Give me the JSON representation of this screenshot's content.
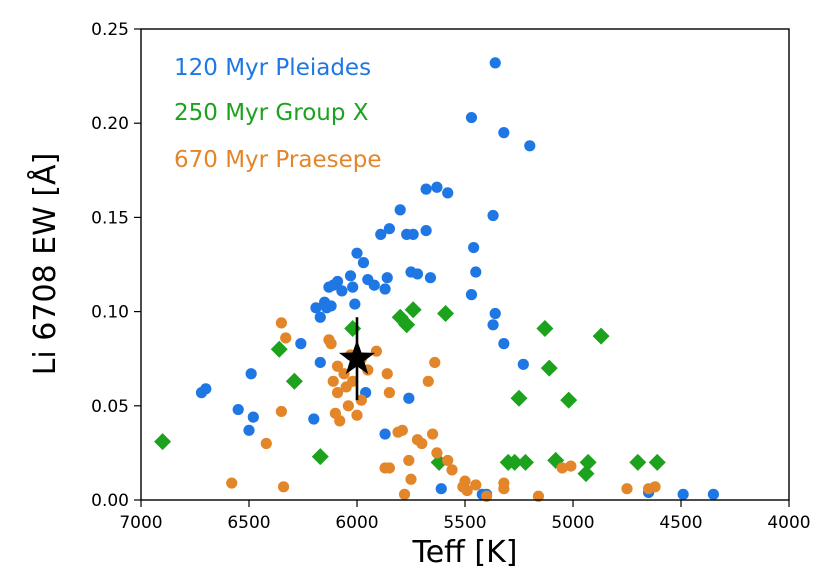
{
  "chart_data": {
    "type": "scatter",
    "xlabel": "Teff [K]",
    "ylabel": "Li 6708 EW [Å]",
    "xlim": [
      7000,
      4000
    ],
    "ylim": [
      0.0,
      0.25
    ],
    "x_ticks": [
      "7000",
      "6500",
      "6000",
      "5500",
      "5000",
      "4500",
      "4000"
    ],
    "y_ticks": [
      "0.00",
      "0.05",
      "0.10",
      "0.15",
      "0.20",
      "0.25"
    ],
    "legend_position": "top-left",
    "series": [
      {
        "name": "120 Myr Pleiades",
        "color": "#1f77e4",
        "marker": "circle",
        "points": [
          [
            5360,
            0.232
          ],
          [
            5470,
            0.203
          ],
          [
            5320,
            0.195
          ],
          [
            5200,
            0.188
          ],
          [
            5630,
            0.166
          ],
          [
            5680,
            0.165
          ],
          [
            5580,
            0.163
          ],
          [
            5800,
            0.154
          ],
          [
            5370,
            0.151
          ],
          [
            5850,
            0.144
          ],
          [
            5890,
            0.141
          ],
          [
            5680,
            0.143
          ],
          [
            5740,
            0.141
          ],
          [
            5770,
            0.141
          ],
          [
            5460,
            0.134
          ],
          [
            5970,
            0.126
          ],
          [
            6000,
            0.131
          ],
          [
            5450,
            0.121
          ],
          [
            5750,
            0.121
          ],
          [
            5720,
            0.12
          ],
          [
            5660,
            0.118
          ],
          [
            5860,
            0.118
          ],
          [
            6030,
            0.119
          ],
          [
            6090,
            0.116
          ],
          [
            6070,
            0.111
          ],
          [
            6110,
            0.114
          ],
          [
            6130,
            0.113
          ],
          [
            5950,
            0.117
          ],
          [
            5920,
            0.114
          ],
          [
            5870,
            0.112
          ],
          [
            6020,
            0.113
          ],
          [
            6150,
            0.105
          ],
          [
            6190,
            0.102
          ],
          [
            6120,
            0.103
          ],
          [
            6140,
            0.102
          ],
          [
            6010,
            0.104
          ],
          [
            5470,
            0.109
          ],
          [
            6170,
            0.097
          ],
          [
            5360,
            0.099
          ],
          [
            5370,
            0.093
          ],
          [
            6260,
            0.083
          ],
          [
            5320,
            0.083
          ],
          [
            6170,
            0.073
          ],
          [
            5230,
            0.072
          ],
          [
            6490,
            0.067
          ],
          [
            6720,
            0.057
          ],
          [
            6700,
            0.059
          ],
          [
            5960,
            0.057
          ],
          [
            5760,
            0.054
          ],
          [
            6550,
            0.048
          ],
          [
            6480,
            0.044
          ],
          [
            6200,
            0.043
          ],
          [
            6500,
            0.037
          ],
          [
            5870,
            0.035
          ],
          [
            5420,
            0.003
          ],
          [
            5400,
            0.003
          ],
          [
            4650,
            0.004
          ],
          [
            4490,
            0.003
          ],
          [
            4350,
            0.003
          ],
          [
            5610,
            0.006
          ]
        ]
      },
      {
        "name": "250 Myr Group X",
        "color": "#1ca21c",
        "marker": "diamond",
        "points": [
          [
            5740,
            0.101
          ],
          [
            5800,
            0.097
          ],
          [
            5770,
            0.093
          ],
          [
            5590,
            0.099
          ],
          [
            6020,
            0.091
          ],
          [
            5130,
            0.091
          ],
          [
            4870,
            0.087
          ],
          [
            6360,
            0.08
          ],
          [
            5110,
            0.07
          ],
          [
            6290,
            0.063
          ],
          [
            5250,
            0.054
          ],
          [
            5020,
            0.053
          ],
          [
            6170,
            0.023
          ],
          [
            5620,
            0.02
          ],
          [
            5300,
            0.02
          ],
          [
            5270,
            0.02
          ],
          [
            5220,
            0.02
          ],
          [
            5080,
            0.021
          ],
          [
            4930,
            0.02
          ],
          [
            4700,
            0.02
          ],
          [
            4610,
            0.02
          ],
          [
            4940,
            0.014
          ],
          [
            6900,
            0.031
          ]
        ]
      },
      {
        "name": "670 Myr Praesepe",
        "color": "#e3862a",
        "marker": "circle",
        "points": [
          [
            6350,
            0.094
          ],
          [
            6330,
            0.086
          ],
          [
            6130,
            0.085
          ],
          [
            6120,
            0.083
          ],
          [
            5910,
            0.079
          ],
          [
            6030,
            0.077
          ],
          [
            5980,
            0.075
          ],
          [
            5640,
            0.073
          ],
          [
            6090,
            0.071
          ],
          [
            6060,
            0.067
          ],
          [
            5950,
            0.069
          ],
          [
            5860,
            0.067
          ],
          [
            6110,
            0.063
          ],
          [
            6020,
            0.063
          ],
          [
            5670,
            0.063
          ],
          [
            6050,
            0.06
          ],
          [
            6090,
            0.057
          ],
          [
            5850,
            0.057
          ],
          [
            5980,
            0.053
          ],
          [
            6040,
            0.05
          ],
          [
            6350,
            0.047
          ],
          [
            6100,
            0.046
          ],
          [
            6000,
            0.045
          ],
          [
            6080,
            0.042
          ],
          [
            5810,
            0.036
          ],
          [
            5790,
            0.037
          ],
          [
            5720,
            0.032
          ],
          [
            5700,
            0.03
          ],
          [
            5650,
            0.035
          ],
          [
            6420,
            0.03
          ],
          [
            5630,
            0.025
          ],
          [
            5580,
            0.021
          ],
          [
            5760,
            0.021
          ],
          [
            5870,
            0.017
          ],
          [
            5850,
            0.017
          ],
          [
            5560,
            0.016
          ],
          [
            5750,
            0.011
          ],
          [
            5500,
            0.01
          ],
          [
            5450,
            0.008
          ],
          [
            5510,
            0.007
          ],
          [
            5320,
            0.009
          ],
          [
            5320,
            0.006
          ],
          [
            5010,
            0.018
          ],
          [
            5050,
            0.017
          ],
          [
            4650,
            0.006
          ],
          [
            4750,
            0.006
          ],
          [
            6580,
            0.009
          ],
          [
            6340,
            0.007
          ],
          [
            5780,
            0.003
          ],
          [
            5490,
            0.005
          ],
          [
            5400,
            0.002
          ],
          [
            5160,
            0.002
          ],
          [
            4620,
            0.007
          ]
        ]
      }
    ],
    "annotations": [
      {
        "type": "star",
        "x": 6000,
        "y": 0.075,
        "yerr": 0.022,
        "color": "#000000"
      }
    ]
  }
}
